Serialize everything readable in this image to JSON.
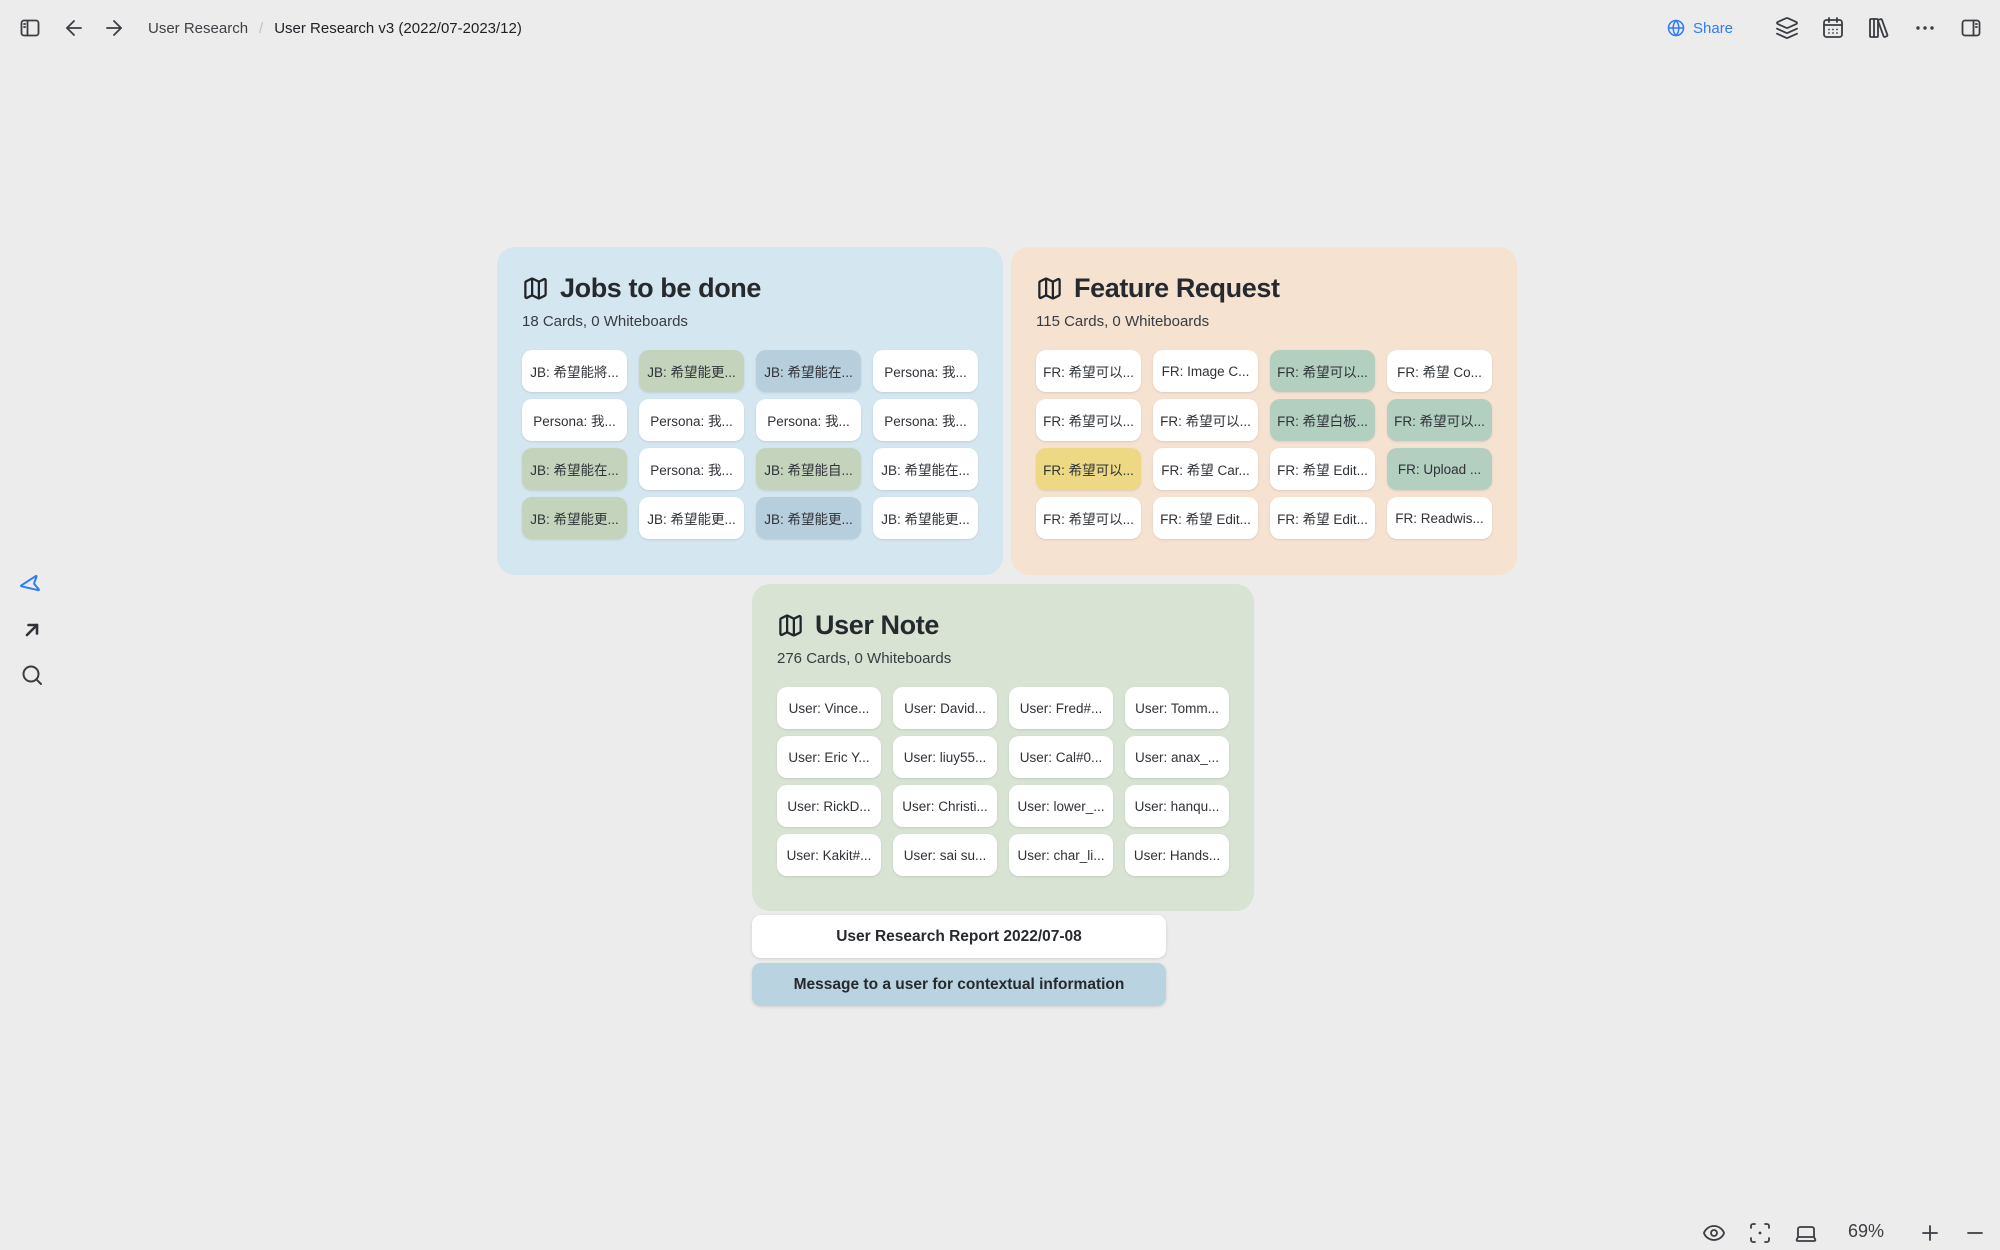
{
  "topbar": {
    "breadcrumb": {
      "root": "User Research",
      "separator": "/",
      "current": "User Research v3 (2022/07-2023/12)"
    },
    "share_label": "Share",
    "left_icons": [
      "collapse-sidebar",
      "back",
      "forward"
    ],
    "right_icons": [
      "globe",
      "layers",
      "calendar",
      "card-library",
      "more-options",
      "right-sidebar"
    ]
  },
  "tools_left": [
    "select-cursor",
    "arrow-connector",
    "search"
  ],
  "groups": [
    {
      "title": "Jobs to be done",
      "meta": "18 Cards, 0 Whiteboards",
      "bg": "#d4e6ef",
      "cards": [
        {
          "label": "JB: 希望能將...",
          "bg": "#ffffff"
        },
        {
          "label": "JB: 希望能更...",
          "bg": "#c4d4bc"
        },
        {
          "label": "JB: 希望能在...",
          "bg": "#b7cedd"
        },
        {
          "label": "Persona: 我...",
          "bg": "#ffffff"
        },
        {
          "label": "Persona: 我...",
          "bg": "#ffffff"
        },
        {
          "label": "Persona: 我...",
          "bg": "#ffffff"
        },
        {
          "label": "Persona: 我...",
          "bg": "#ffffff"
        },
        {
          "label": "Persona: 我...",
          "bg": "#ffffff"
        },
        {
          "label": "JB: 希望能在...",
          "bg": "#c4d4bc"
        },
        {
          "label": "Persona: 我...",
          "bg": "#ffffff"
        },
        {
          "label": "JB: 希望能自...",
          "bg": "#c4d4bc"
        },
        {
          "label": "JB: 希望能在...",
          "bg": "#ffffff"
        },
        {
          "label": "JB: 希望能更...",
          "bg": "#c4d4bc"
        },
        {
          "label": "JB: 希望能更...",
          "bg": "#ffffff"
        },
        {
          "label": "JB: 希望能更...",
          "bg": "#b7cedd"
        },
        {
          "label": "JB: 希望能更...",
          "bg": "#ffffff"
        }
      ]
    },
    {
      "title": "Feature Request",
      "meta": "115 Cards, 0 Whiteboards",
      "bg": "#f5e2d0",
      "cards": [
        {
          "label": "FR: 希望可以...",
          "bg": "#ffffff"
        },
        {
          "label": "FR: Image C...",
          "bg": "#ffffff"
        },
        {
          "label": "FR: 希望可以...",
          "bg": "#b2cfc0"
        },
        {
          "label": "FR: 希望 Co...",
          "bg": "#ffffff"
        },
        {
          "label": "FR: 希望可以...",
          "bg": "#ffffff"
        },
        {
          "label": "FR: 希望可以...",
          "bg": "#ffffff"
        },
        {
          "label": "FR: 希望白板...",
          "bg": "#b2cfc0"
        },
        {
          "label": "FR: 希望可以...",
          "bg": "#b2cfc0"
        },
        {
          "label": "FR: 希望可以...",
          "bg": "#edd884"
        },
        {
          "label": "FR: 希望 Car...",
          "bg": "#ffffff"
        },
        {
          "label": "FR: 希望 Edit...",
          "bg": "#ffffff"
        },
        {
          "label": "FR: Upload ...",
          "bg": "#b2cfc0"
        },
        {
          "label": "FR: 希望可以...",
          "bg": "#ffffff"
        },
        {
          "label": "FR: 希望 Edit...",
          "bg": "#ffffff"
        },
        {
          "label": "FR: 希望 Edit...",
          "bg": "#ffffff"
        },
        {
          "label": "FR: Readwis...",
          "bg": "#ffffff"
        }
      ]
    },
    {
      "title": "User Note",
      "meta": "276 Cards, 0 Whiteboards",
      "bg": "#d9e3d3",
      "cards": [
        {
          "label": "User: Vince...",
          "bg": "#ffffff"
        },
        {
          "label": "User: David...",
          "bg": "#ffffff"
        },
        {
          "label": "User: Fred#...",
          "bg": "#ffffff"
        },
        {
          "label": "User: Tomm...",
          "bg": "#ffffff"
        },
        {
          "label": "User: Eric Y...",
          "bg": "#ffffff"
        },
        {
          "label": "User: liuy55...",
          "bg": "#ffffff"
        },
        {
          "label": "User: Cal#0...",
          "bg": "#ffffff"
        },
        {
          "label": "User: anax_...",
          "bg": "#ffffff"
        },
        {
          "label": "User: RickD...",
          "bg": "#ffffff"
        },
        {
          "label": "User: Christi...",
          "bg": "#ffffff"
        },
        {
          "label": "User: lower_...",
          "bg": "#ffffff"
        },
        {
          "label": "User: hanqu...",
          "bg": "#ffffff"
        },
        {
          "label": "User: Kakit#...",
          "bg": "#ffffff"
        },
        {
          "label": "User: sai su...",
          "bg": "#ffffff"
        },
        {
          "label": "User: char_li...",
          "bg": "#ffffff"
        },
        {
          "label": "User: Hands...",
          "bg": "#ffffff"
        }
      ]
    }
  ],
  "standalone_cards": [
    {
      "label": "User Research Report 2022/07-08",
      "bg": "#ffffff"
    },
    {
      "label": "Message to a user for contextual information",
      "bg": "#bad3e1"
    }
  ],
  "view_controls": {
    "icons": [
      "eye",
      "focus",
      "display",
      "zoom-in",
      "zoom-out"
    ],
    "zoom_level": "69%"
  },
  "colors": {
    "canvas_bg": "#ececec",
    "accent_blue": "#2e7cf6",
    "group_jobs_bg": "#d4e6ef",
    "group_feature_request_bg": "#f5e2d0",
    "group_user_note_bg": "#d9e3d3",
    "card_green": "#c4d4bc",
    "card_teal_green": "#b2cfc0",
    "card_blue": "#b7cedd",
    "card_yellow": "#edd884",
    "card_message_blue": "#bad3e1"
  }
}
